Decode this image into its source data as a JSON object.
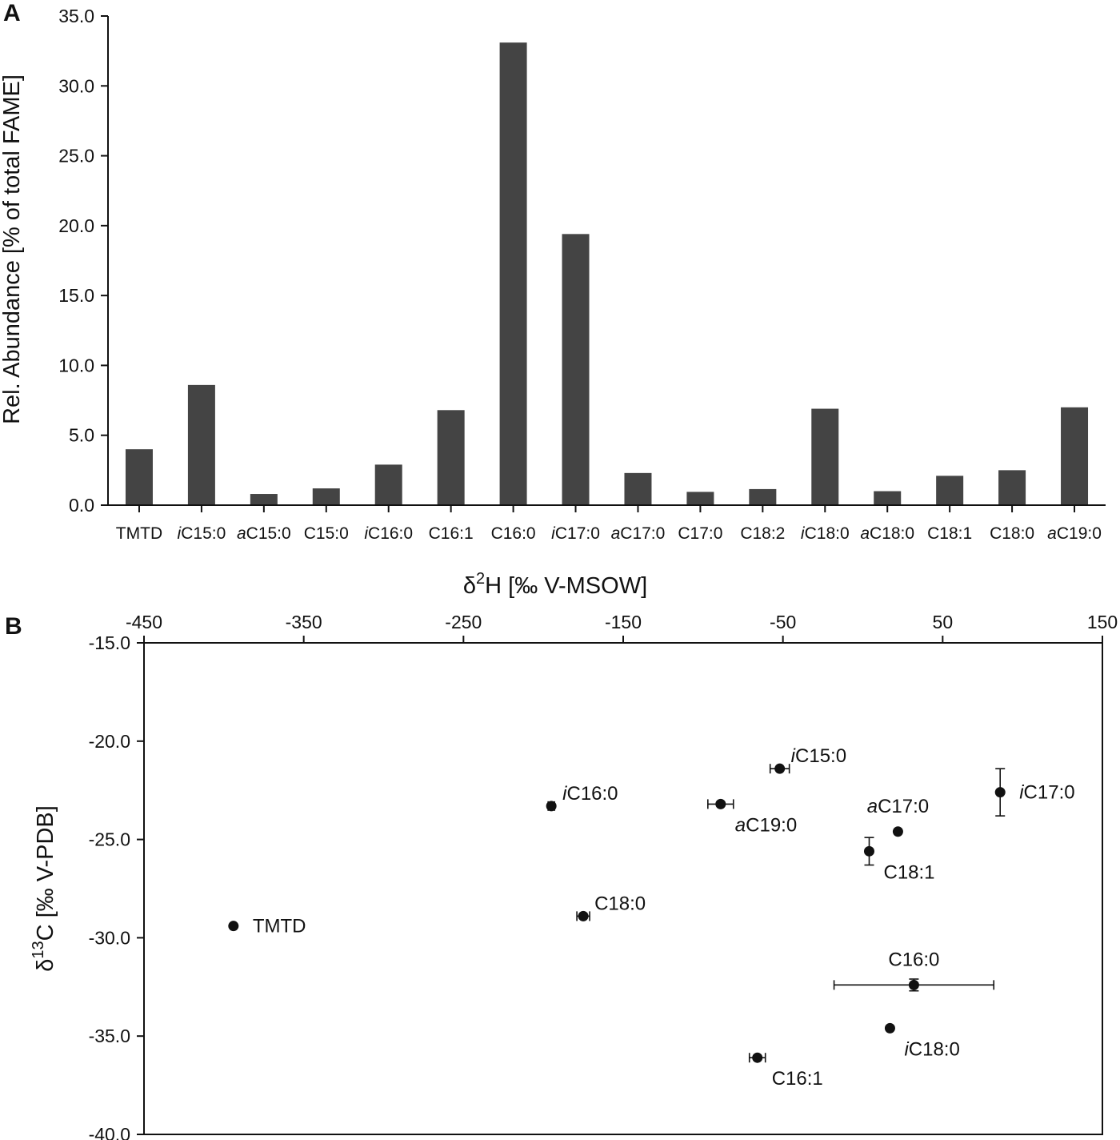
{
  "colors": {
    "bar": "#444444",
    "axis": "#111111",
    "point": "#111111"
  },
  "chart_data": [
    {
      "panel": "A",
      "type": "bar",
      "ylabel": "Rel. Abundance [% of total FAME]",
      "xlabel": "",
      "ylim": [
        0,
        35
      ],
      "yticks": [
        "0.0",
        "5.0",
        "10.0",
        "15.0",
        "20.0",
        "25.0",
        "30.0",
        "35.0"
      ],
      "categories": [
        {
          "prefix": "",
          "name": "TMTD"
        },
        {
          "prefix": "i",
          "name": "C15:0"
        },
        {
          "prefix": "a",
          "name": "C15:0"
        },
        {
          "prefix": "",
          "name": "C15:0"
        },
        {
          "prefix": "i",
          "name": "C16:0"
        },
        {
          "prefix": "",
          "name": "C16:1"
        },
        {
          "prefix": "",
          "name": "C16:0"
        },
        {
          "prefix": "i",
          "name": "C17:0"
        },
        {
          "prefix": "a",
          "name": "C17:0"
        },
        {
          "prefix": "",
          "name": "C17:0"
        },
        {
          "prefix": "",
          "name": "C18:2"
        },
        {
          "prefix": "i",
          "name": "C18:0"
        },
        {
          "prefix": "a",
          "name": "C18:0"
        },
        {
          "prefix": "",
          "name": "C18:1"
        },
        {
          "prefix": "",
          "name": "C18:0"
        },
        {
          "prefix": "a",
          "name": "C19:0"
        }
      ],
      "values": [
        4.0,
        8.6,
        0.8,
        1.2,
        2.9,
        6.8,
        33.1,
        19.4,
        2.3,
        0.95,
        1.15,
        6.9,
        1.0,
        2.1,
        2.5,
        7.0
      ]
    },
    {
      "panel": "B",
      "type": "scatter",
      "xlabel": {
        "pre": "δ",
        "sup": "2",
        "post": "H [‰ V-MSOW]"
      },
      "ylabel": {
        "pre": "δ",
        "sup": "13",
        "post": "C [‰ V-PDB]"
      },
      "xlim": [
        -450,
        150
      ],
      "ylim": [
        -40,
        -15
      ],
      "xticks": [
        "-450",
        "-350",
        "-250",
        "-150",
        "-50",
        "50",
        "150"
      ],
      "yticks": [
        "-15.0",
        "-20.0",
        "-25.0",
        "-30.0",
        "-35.0",
        "-40.0"
      ],
      "points": [
        {
          "prefix": "",
          "name": "TMTD",
          "x": -394,
          "y": -29.4,
          "xerr": 0,
          "yerr": 0,
          "label_pos": "right"
        },
        {
          "prefix": "i",
          "name": "C15:0",
          "x": -52,
          "y": -21.4,
          "xerr": 6,
          "yerr": 0,
          "label_pos": "upper-right"
        },
        {
          "prefix": "i",
          "name": "C16:0",
          "x": -195,
          "y": -23.3,
          "xerr": 2,
          "yerr": 0,
          "label_pos": "upper-right"
        },
        {
          "prefix": "a",
          "name": "C19:0",
          "x": -89,
          "y": -23.2,
          "xerr": 8,
          "yerr": 0,
          "label_pos": "lower-right"
        },
        {
          "prefix": "a",
          "name": "C17:0",
          "x": 22,
          "y": -24.6,
          "xerr": 0,
          "yerr": 0,
          "label_pos": "above"
        },
        {
          "prefix": "",
          "name": "C18:1",
          "x": 4,
          "y": -25.6,
          "xerr": 0,
          "yerr": 0.7,
          "label_pos": "lower-right"
        },
        {
          "prefix": "i",
          "name": "C17:0",
          "x": 86,
          "y": -22.6,
          "xerr": 0,
          "yerr": 1.2,
          "label_pos": "right"
        },
        {
          "prefix": "",
          "name": "C18:0",
          "x": -175,
          "y": -28.9,
          "xerr": 4,
          "yerr": 0,
          "label_pos": "upper-right"
        },
        {
          "prefix": "",
          "name": "C16:0",
          "x": 32,
          "y": -32.4,
          "xerr": 50,
          "yerr": 0.3,
          "label_pos": "above"
        },
        {
          "prefix": "i",
          "name": "C18:0",
          "x": 17,
          "y": -34.6,
          "xerr": 0,
          "yerr": 0,
          "label_pos": "lower-right"
        },
        {
          "prefix": "",
          "name": "C16:1",
          "x": -66,
          "y": -36.1,
          "xerr": 5,
          "yerr": 0,
          "label_pos": "lower-right"
        }
      ]
    }
  ],
  "panel_labels": {
    "a": "A",
    "b": "B"
  }
}
